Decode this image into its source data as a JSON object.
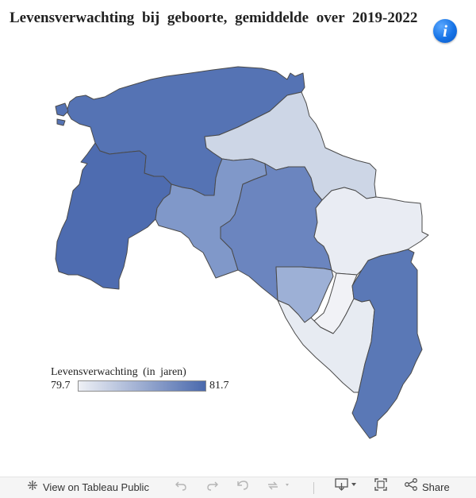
{
  "title": "Levensverwachting  bij  geboorte,  gemiddelde  over  2019-2022",
  "info_icon": "info-icon",
  "legend": {
    "title": "Levensverwachting (in jaren)",
    "min_label": "79.7",
    "max_label": "81.7",
    "min": 79.7,
    "max": 81.7,
    "color_low": "#eef0f5",
    "color_high": "#4a69ad"
  },
  "map": {
    "region_colors": {
      "north-west": "#5573b4",
      "west": "#4e6cb0",
      "north-east": "#cdd6e6",
      "center-west": "#8098c9",
      "center": "#6b85bf",
      "east": "#e9ecf3",
      "south-center": "#9db0d6",
      "south-sliver": "#f1f2f6",
      "south-low": "#e7ebf2",
      "south-east": "#5a78b6"
    },
    "border_color": "#4a4a4a"
  },
  "toolbar": {
    "view_label": "View on Tableau Public",
    "share_label": "Share",
    "icons": [
      "tableau-icon",
      "undo-icon",
      "redo-icon",
      "revert-icon",
      "refresh-icon",
      "download-icon",
      "fullscreen-icon",
      "share-icon"
    ]
  }
}
